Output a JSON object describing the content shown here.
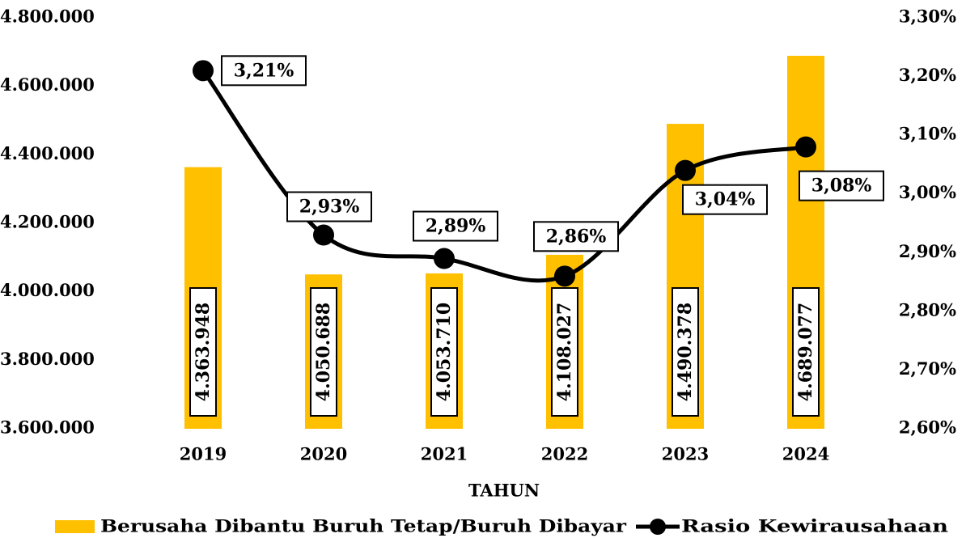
{
  "chart_data": {
    "type": "bar",
    "x_label": "TAHUN",
    "categories": [
      "2019",
      "2020",
      "2021",
      "2022",
      "2023",
      "2024"
    ],
    "series": [
      {
        "name": "Berusaha Dibantu Buruh Tetap/Buruh Dibayar",
        "type": "bar",
        "color": "#ffc000",
        "values": [
          4363948,
          4050688,
          4053710,
          4108027,
          4490378,
          4689077
        ],
        "value_labels": [
          "4.363.948",
          "4.050.688",
          "4.053.710",
          "4.108.027",
          "4.490.378",
          "4.689.077"
        ]
      },
      {
        "name": "Rasio Kewirausahaan",
        "type": "line",
        "axis": "y2",
        "color": "#000000",
        "values": [
          3.21,
          2.93,
          2.89,
          2.86,
          3.04,
          3.08
        ],
        "value_labels": [
          "3,21%",
          "2,93%",
          "2,89%",
          "2,86%",
          "3,04%",
          "3,08%"
        ]
      }
    ],
    "ylim": [
      3600000,
      4800000
    ],
    "yticks": [
      {
        "value": 3600000,
        "label": "3.600.000"
      },
      {
        "value": 3800000,
        "label": "3.800.000"
      },
      {
        "value": 4000000,
        "label": "4.000.000"
      },
      {
        "value": 4200000,
        "label": "4.200.000"
      },
      {
        "value": 4400000,
        "label": "4.400.000"
      },
      {
        "value": 4600000,
        "label": "4.600.000"
      },
      {
        "value": 4800000,
        "label": "4.800.000"
      }
    ],
    "y2lim": [
      2.6,
      3.3
    ],
    "y2ticks": [
      {
        "value": 2.6,
        "label": "2,60%"
      },
      {
        "value": 2.7,
        "label": "2,70%"
      },
      {
        "value": 2.8,
        "label": "2,80%"
      },
      {
        "value": 2.9,
        "label": "2,90%"
      },
      {
        "value": 3.0,
        "label": "3,00%"
      },
      {
        "value": 3.1,
        "label": "3,10%"
      },
      {
        "value": 3.2,
        "label": "3,20%"
      },
      {
        "value": 3.3,
        "label": "3,30%"
      }
    ],
    "legend": "bottom"
  }
}
